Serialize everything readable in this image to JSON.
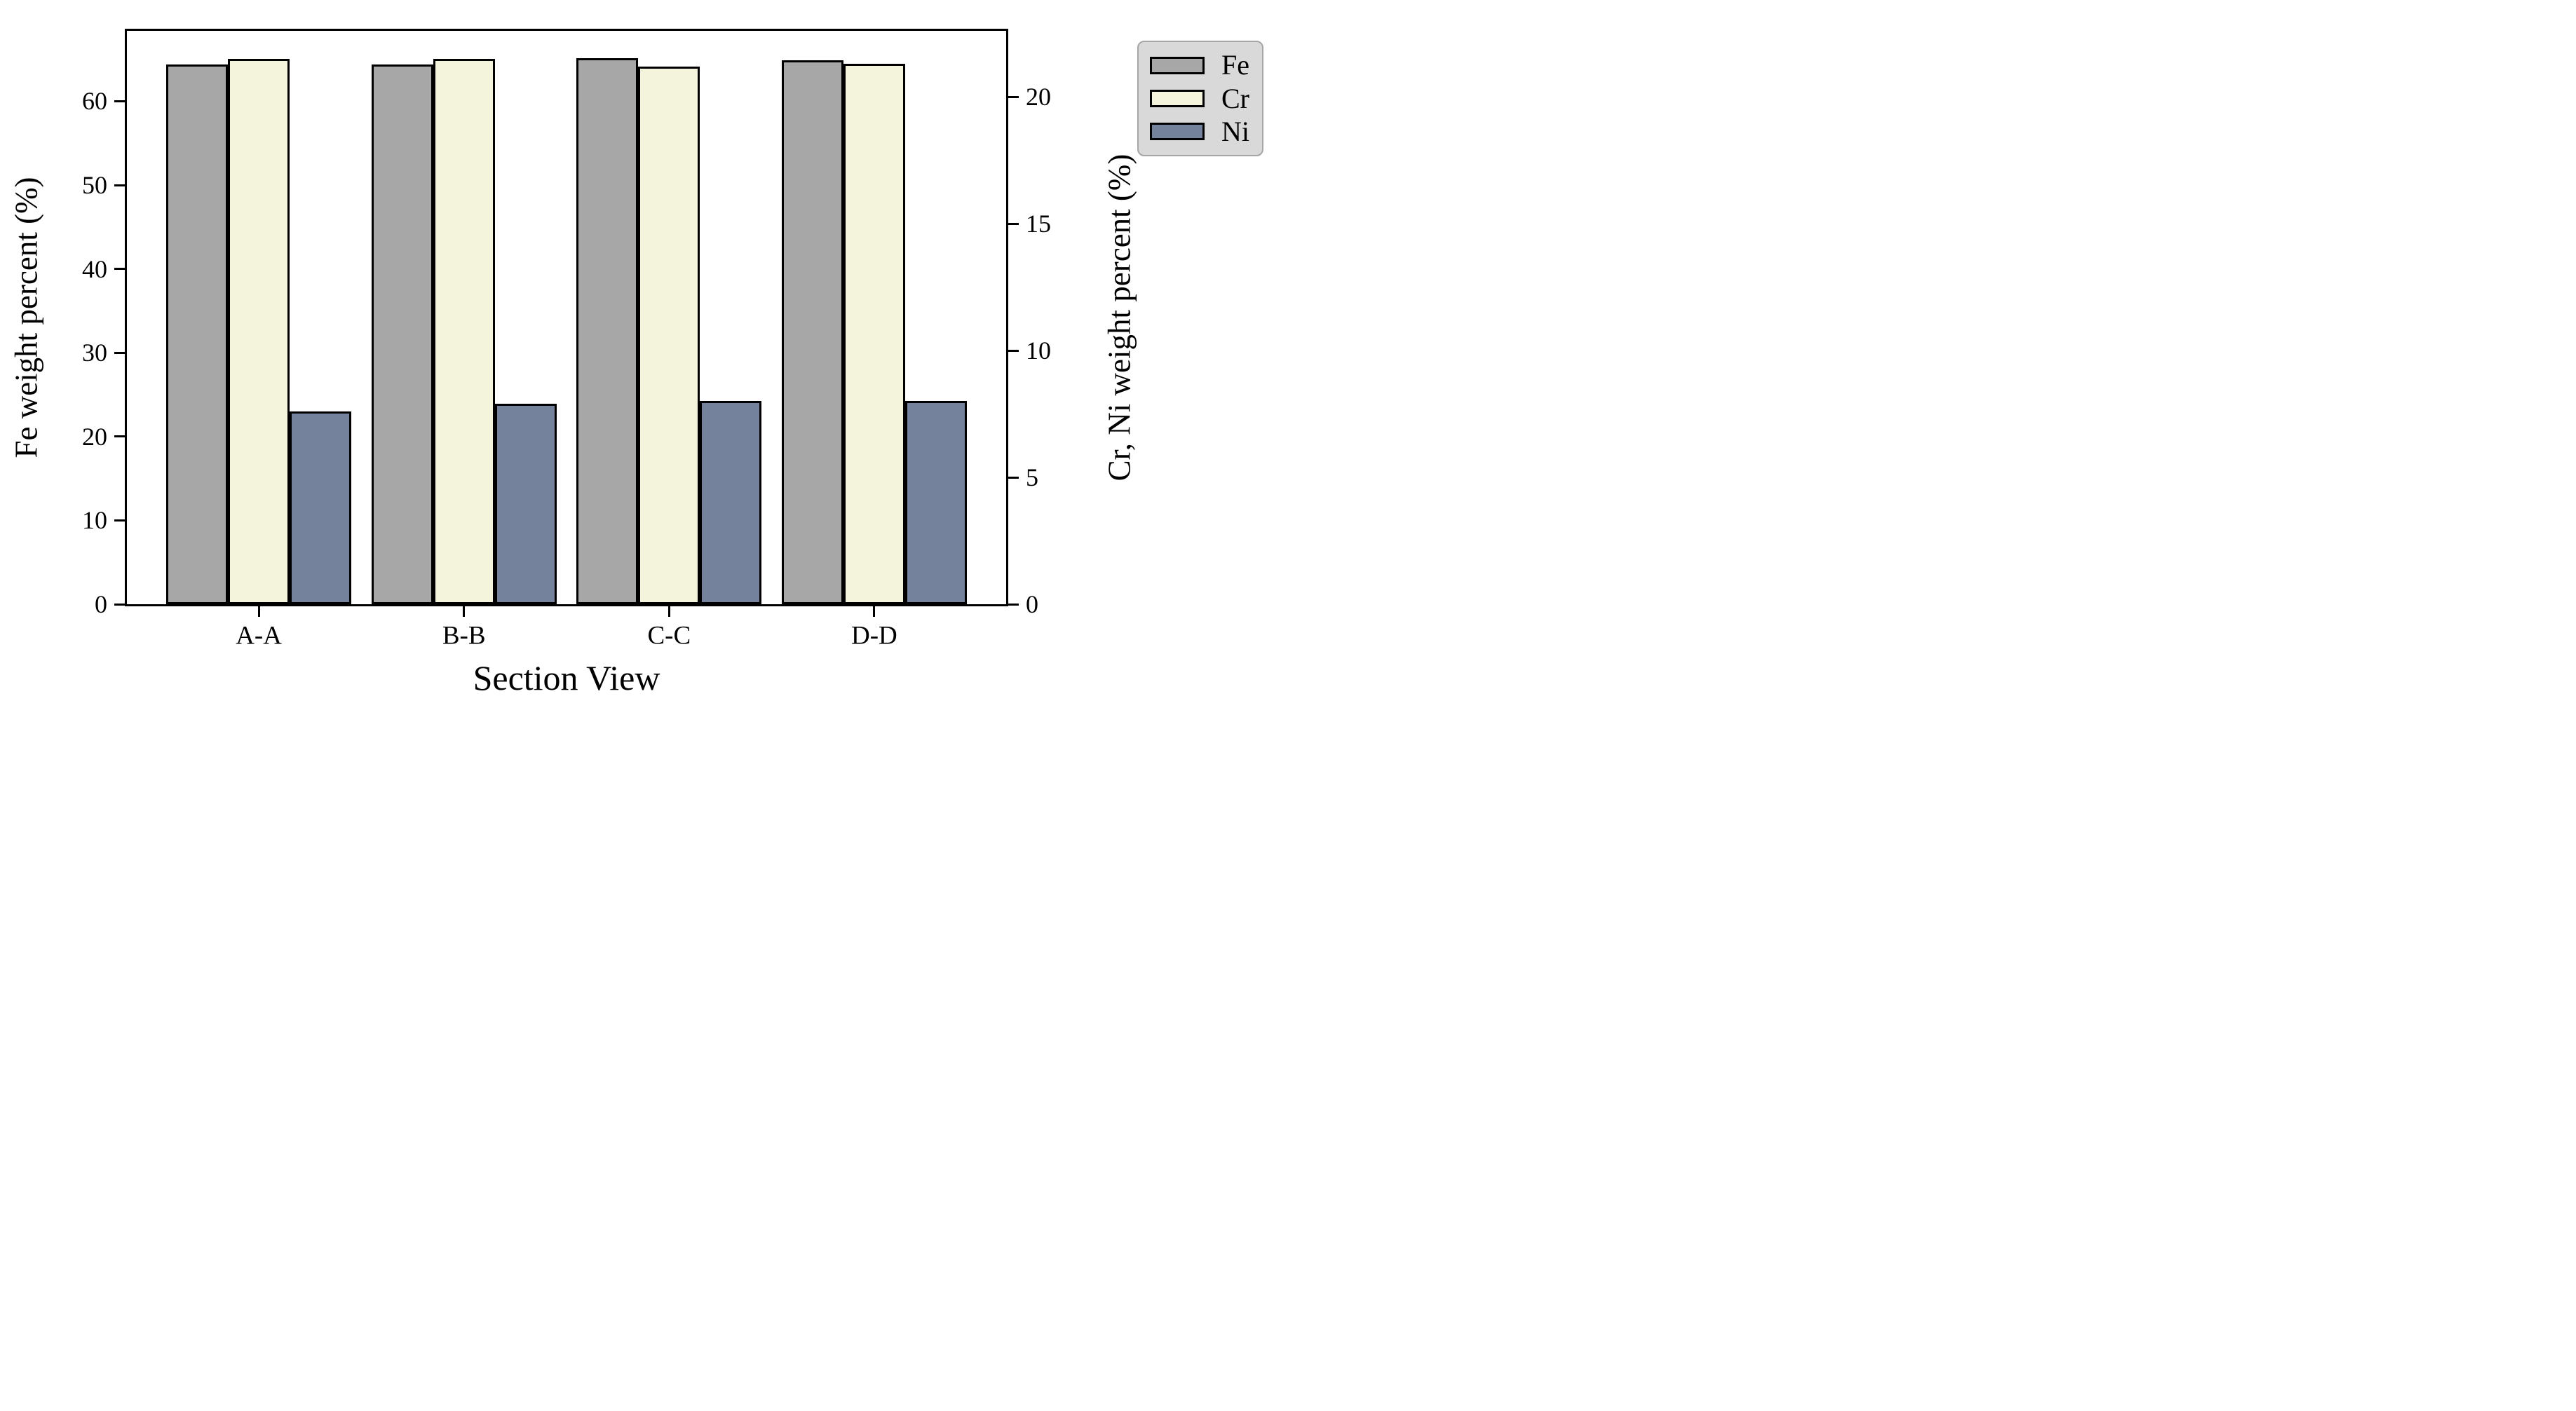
{
  "chart_data": {
    "type": "bar",
    "categories": [
      "A-A",
      "B-B",
      "C-C",
      "D-D"
    ],
    "series": [
      {
        "name": "Fe",
        "axis": "left",
        "color": "#a7a7a7",
        "values": [
          64.4,
          64.4,
          65.1,
          64.9
        ]
      },
      {
        "name": "Cr",
        "axis": "right",
        "color": "#f4f4dc",
        "values": [
          21.5,
          21.5,
          21.2,
          21.3
        ]
      },
      {
        "name": "Ni",
        "axis": "right",
        "color": "#74839b",
        "values": [
          7.6,
          7.9,
          8.0,
          8.0
        ]
      }
    ],
    "xlabel": "Section View",
    "left_axis": {
      "label": "Fe weight percent (%)",
      "ticks": [
        0,
        10,
        20,
        30,
        40,
        50,
        60
      ],
      "min": 0,
      "max": 68.4
    },
    "right_axis": {
      "label": "Cr, Ni weight percent (%)",
      "ticks": [
        0,
        5,
        10,
        15,
        20
      ],
      "min": 0,
      "max": 22.6
    },
    "legend": {
      "position": "outside-upper-right",
      "entries": [
        "Fe",
        "Cr",
        "Ni"
      ]
    },
    "styles": {
      "bar_edge_color": "#000000",
      "legend_background": "#d9d9d9",
      "legend_border": "#a6a6a6",
      "grid": false
    }
  }
}
